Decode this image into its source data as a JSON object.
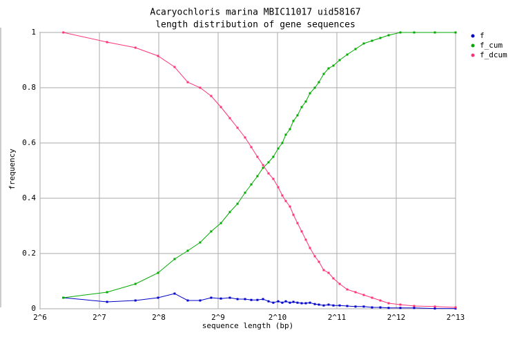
{
  "chart_data": {
    "type": "line",
    "title": "Acaryochloris marina MBIC11017 uid58167",
    "subtitle": "length distribution of gene sequences",
    "x_label": "sequence length (bp)",
    "y_label": "frequency",
    "log_x": true,
    "grid": true,
    "legend": "right",
    "xlim": [
      64,
      8192
    ],
    "xticks": [
      {
        "value": 64,
        "label": "2^6"
      },
      {
        "value": 128,
        "label": "2^7"
      },
      {
        "value": 256,
        "label": "2^8"
      },
      {
        "value": 512,
        "label": "2^9"
      },
      {
        "value": 1024,
        "label": "2^10"
      },
      {
        "value": 2048,
        "label": "2^11"
      },
      {
        "value": 4096,
        "label": "2^12"
      },
      {
        "value": 8192,
        "label": "2^13"
      }
    ],
    "ylim": [
      0,
      1
    ],
    "yticks": [
      0,
      0.2,
      0.4,
      0.6,
      0.8,
      1
    ],
    "x": [
      84,
      140,
      195,
      254,
      308,
      359,
      415,
      472,
      529,
      587,
      642,
      701,
      754,
      810,
      865,
      922,
      975,
      1032,
      1083,
      1128,
      1184,
      1233,
      1293,
      1358,
      1425,
      1496,
      1583,
      1661,
      1757,
      1859,
      1967,
      2116,
      2311,
      2546,
      2804,
      3089,
      3403,
      3748,
      4300,
      5050,
      6432,
      8192
    ],
    "series": [
      {
        "name": "f",
        "color": "#0000cc",
        "values": [
          0.04,
          0.025,
          0.03,
          0.04,
          0.055,
          0.03,
          0.03,
          0.04,
          0.037,
          0.04,
          0.035,
          0.035,
          0.032,
          0.032,
          0.035,
          0.027,
          0.022,
          0.027,
          0.022,
          0.027,
          0.022,
          0.025,
          0.022,
          0.02,
          0.02,
          0.022,
          0.017,
          0.015,
          0.012,
          0.015,
          0.012,
          0.012,
          0.01,
          0.008,
          0.008,
          0.005,
          0.005,
          0.003,
          0.003,
          0.003,
          0.001,
          0.001
        ]
      },
      {
        "name": "f_cum",
        "color": "#00aa00",
        "values": [
          0.04,
          0.06,
          0.09,
          0.13,
          0.18,
          0.21,
          0.24,
          0.28,
          0.31,
          0.35,
          0.38,
          0.42,
          0.45,
          0.48,
          0.51,
          0.53,
          0.55,
          0.58,
          0.6,
          0.63,
          0.65,
          0.68,
          0.7,
          0.73,
          0.75,
          0.78,
          0.8,
          0.82,
          0.85,
          0.87,
          0.88,
          0.9,
          0.92,
          0.94,
          0.96,
          0.97,
          0.98,
          0.99,
          1,
          1,
          1,
          1
        ]
      },
      {
        "name": "f_dcum",
        "color": "#ff3377",
        "values": [
          1,
          0.965,
          0.945,
          0.915,
          0.875,
          0.82,
          0.8,
          0.77,
          0.73,
          0.69,
          0.655,
          0.62,
          0.585,
          0.55,
          0.52,
          0.49,
          0.47,
          0.44,
          0.41,
          0.39,
          0.37,
          0.34,
          0.31,
          0.28,
          0.25,
          0.22,
          0.19,
          0.17,
          0.14,
          0.13,
          0.11,
          0.09,
          0.07,
          0.06,
          0.05,
          0.04,
          0.03,
          0.02,
          0.015,
          0.01,
          0.008,
          0.005
        ]
      }
    ]
  }
}
